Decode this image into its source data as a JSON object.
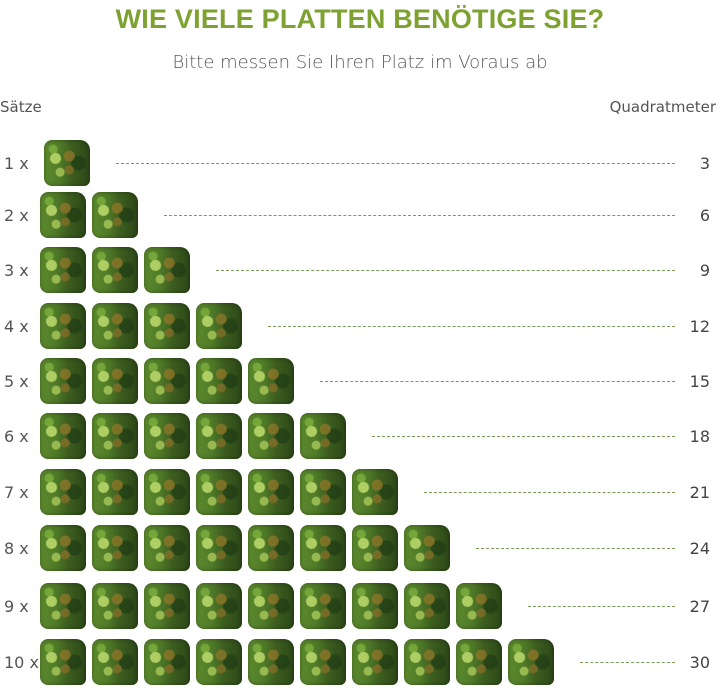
{
  "title": "WIE VIELE PLATTEN BENÖTIGE SIE?",
  "subtitle": "Bitte messen Sie Ihren Platz im Voraus ab",
  "columns": {
    "left": "Sätze",
    "right": "Quadratmeter"
  },
  "accent_color": "#7ea232",
  "rows": [
    {
      "label": "1 x",
      "count": 1,
      "value": "3"
    },
    {
      "label": "2 x",
      "count": 2,
      "value": "6"
    },
    {
      "label": "3 x",
      "count": 3,
      "value": "9"
    },
    {
      "label": "4 x",
      "count": 4,
      "value": "12"
    },
    {
      "label": "5 x",
      "count": 5,
      "value": "15"
    },
    {
      "label": "6 x",
      "count": 6,
      "value": "18"
    },
    {
      "label": "7 x",
      "count": 7,
      "value": "21"
    },
    {
      "label": "8 x",
      "count": 8,
      "value": "24"
    },
    {
      "label": "9 x",
      "count": 9,
      "value": "27"
    },
    {
      "label": "10 x",
      "count": 10,
      "value": "30"
    }
  ],
  "tile_icon": "hedge-panel-icon"
}
